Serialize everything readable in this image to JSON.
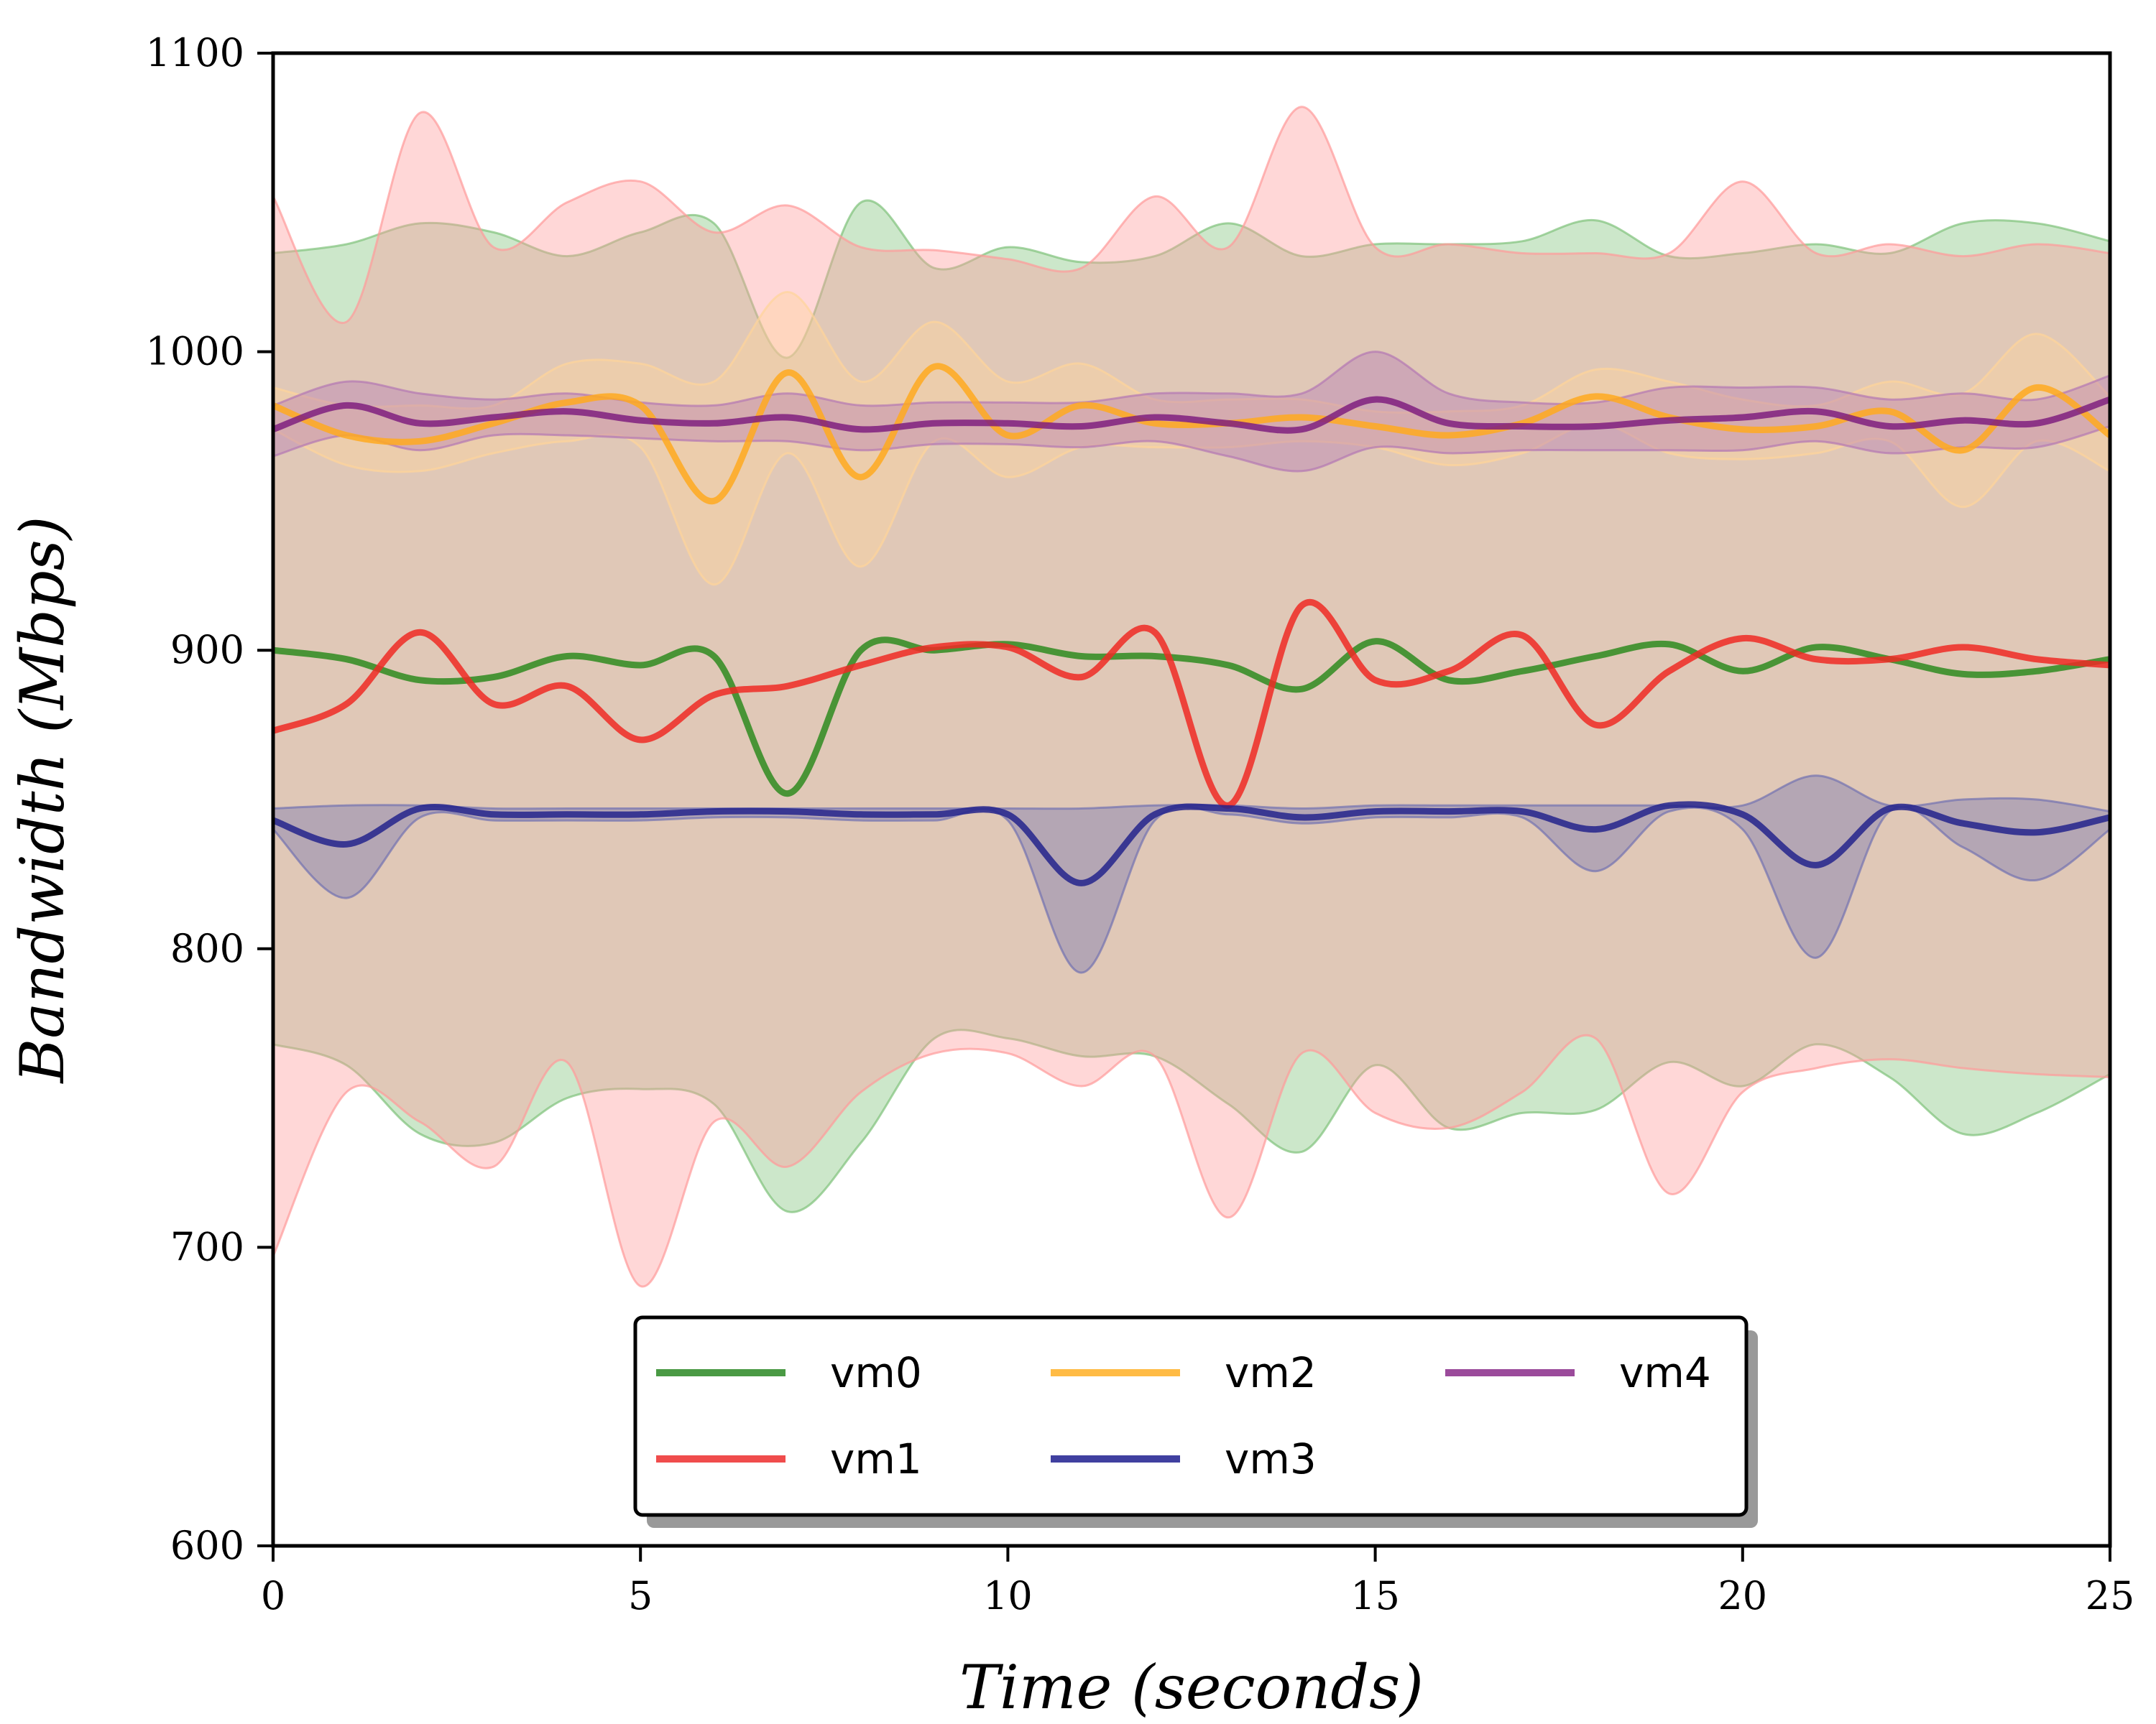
{
  "chart_data": {
    "type": "line",
    "xlabel": "Time (seconds)",
    "ylabel": "Bandwidth (Mbps)",
    "xlim": [
      0,
      25
    ],
    "ylim": [
      600,
      1100
    ],
    "x_ticks": [
      0,
      5,
      10,
      15,
      20,
      25
    ],
    "y_ticks": [
      600,
      700,
      800,
      900,
      1000,
      1100
    ],
    "x_tick_labels": [
      "0",
      "5",
      "10",
      "15",
      "20",
      "25"
    ],
    "y_tick_labels": [
      "600",
      "700",
      "800",
      "900",
      "1000",
      "1100"
    ],
    "grid": false,
    "legend": {
      "position": "bottom-center",
      "columns": 3,
      "shadow": true
    },
    "x": [
      0,
      1,
      2,
      3,
      4,
      5,
      6,
      7,
      8,
      9,
      10,
      11,
      12,
      13,
      14,
      15,
      16,
      17,
      18,
      19,
      20,
      21,
      22,
      23,
      24,
      25
    ],
    "series": [
      {
        "name": "vm0",
        "color": "#2e8b20",
        "band_color": "#7fc27a",
        "mean": [
          900,
          897,
          890,
          891,
          898,
          895,
          898,
          852,
          900,
          900,
          902,
          898,
          898,
          895,
          887,
          903,
          890,
          893,
          898,
          902,
          893,
          901,
          897,
          892,
          893,
          897
        ],
        "upper": [
          1033,
          1036,
          1043,
          1040,
          1032,
          1040,
          1043,
          998,
          1050,
          1028,
          1035,
          1030,
          1032,
          1043,
          1032,
          1036,
          1036,
          1037,
          1044,
          1032,
          1033,
          1036,
          1033,
          1043,
          1043,
          1037
        ],
        "lower": [
          768,
          761,
          738,
          735,
          750,
          753,
          748,
          712,
          735,
          770,
          770,
          764,
          764,
          748,
          732,
          761,
          740,
          745,
          746,
          762,
          754,
          768,
          757,
          738,
          745,
          758
        ]
      },
      {
        "name": "vm1",
        "color": "#ee2a24",
        "band_color": "#ff9a9a",
        "mean": [
          873,
          882,
          906,
          882,
          888,
          870,
          885,
          888,
          895,
          901,
          901,
          891,
          906,
          848,
          915,
          890,
          893,
          905,
          875,
          893,
          904,
          897,
          897,
          901,
          897,
          895
        ],
        "upper": [
          1052,
          1010,
          1080,
          1035,
          1050,
          1057,
          1040,
          1049,
          1035,
          1034,
          1031,
          1028,
          1052,
          1035,
          1082,
          1035,
          1036,
          1033,
          1033,
          1033,
          1057,
          1033,
          1036,
          1032,
          1036,
          1033
        ],
        "lower": [
          697,
          752,
          742,
          727,
          762,
          687,
          742,
          727,
          752,
          765,
          765,
          754,
          764,
          710,
          765,
          745,
          740,
          752,
          770,
          718,
          752,
          760,
          763,
          760,
          758,
          757
        ]
      },
      {
        "name": "vm2",
        "color": "#ffa91f",
        "band_color": "#ffd49a",
        "mean": [
          982,
          972,
          970,
          976,
          983,
          982,
          950,
          993,
          958,
          995,
          972,
          982,
          976,
          976,
          978,
          975,
          972,
          976,
          985,
          978,
          974,
          975,
          980,
          967,
          988,
          972
        ],
        "upper": [
          988,
          982,
          982,
          982,
          996,
          996,
          990,
          1020,
          990,
          1010,
          990,
          996,
          984,
          984,
          984,
          980,
          980,
          982,
          994,
          990,
          984,
          982,
          990,
          986,
          1006,
          985
        ],
        "lower": [
          974,
          962,
          960,
          966,
          970,
          968,
          922,
          966,
          928,
          970,
          958,
          968,
          968,
          968,
          970,
          968,
          962,
          966,
          976,
          966,
          964,
          966,
          970,
          948,
          970,
          960
        ]
      },
      {
        "name": "vm3",
        "color": "#23238c",
        "band_color": "#7272b0",
        "mean": [
          843,
          835,
          847,
          845,
          845,
          845,
          846,
          846,
          845,
          845,
          845,
          822,
          845,
          847,
          844,
          846,
          846,
          846,
          840,
          848,
          845,
          828,
          847,
          842,
          839,
          844
        ],
        "upper": [
          847,
          848,
          848,
          847,
          847,
          847,
          847,
          847,
          847,
          847,
          847,
          847,
          848,
          848,
          847,
          848,
          848,
          848,
          848,
          848,
          848,
          858,
          848,
          850,
          850,
          846
        ],
        "lower": [
          840,
          817,
          844,
          843,
          843,
          843,
          844,
          844,
          843,
          843,
          843,
          792,
          843,
          845,
          842,
          844,
          844,
          844,
          826,
          846,
          840,
          797,
          846,
          834,
          823,
          840
        ]
      },
      {
        "name": "vm4",
        "color": "#7f1f7f",
        "band_color": "#b477b4",
        "mean": [
          974,
          982,
          976,
          978,
          980,
          977,
          976,
          978,
          974,
          976,
          976,
          975,
          978,
          976,
          974,
          984,
          976,
          975,
          975,
          977,
          978,
          980,
          975,
          977,
          976,
          984
        ],
        "upper": [
          982,
          990,
          986,
          984,
          986,
          983,
          982,
          986,
          982,
          983,
          983,
          983,
          986,
          986,
          986,
          1000,
          986,
          983,
          983,
          988,
          988,
          988,
          984,
          986,
          984,
          992
        ],
        "lower": [
          965,
          972,
          967,
          972,
          972,
          971,
          970,
          970,
          967,
          969,
          969,
          968,
          970,
          965,
          960,
          968,
          966,
          967,
          967,
          967,
          967,
          970,
          966,
          968,
          968,
          975
        ]
      }
    ]
  },
  "legend_labels": {
    "vm0": "vm0",
    "vm1": "vm1",
    "vm2": "vm2",
    "vm3": "vm3",
    "vm4": "vm4"
  }
}
